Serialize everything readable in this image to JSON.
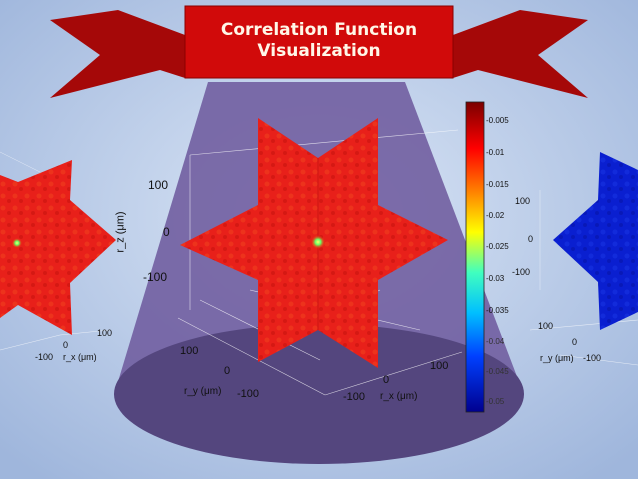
{
  "slide": {
    "title_line1": "Correlation Function",
    "title_line2": "Visualization",
    "background_color": "#b9cbe6",
    "banner_color": "#d10a0a"
  },
  "colorbar": {
    "ticks": [
      "-0.005",
      "-0.01",
      "-0.015",
      "-0.02",
      "-0.025",
      "-0.03",
      "-0.035",
      "-0.04",
      "-0.045",
      "-0.05"
    ]
  },
  "center_plot": {
    "z_ticks": [
      "100",
      "0",
      "-100"
    ],
    "z_label": "r_z (μm)",
    "y_ticks": [
      "100",
      "0",
      "-100"
    ],
    "y_label": "r_y (μm)",
    "x_ticks": [
      "100",
      "0",
      "-100"
    ],
    "x_label": "r_x (μm)"
  },
  "left_plot": {
    "x_ticks": [
      "100",
      "0",
      "-100"
    ],
    "x_label": "r_x (μm)"
  },
  "right_plot": {
    "z_ticks": [
      "100",
      "0",
      "-100"
    ],
    "y_ticks": [
      "100",
      "0",
      "-100"
    ],
    "y_label": "r_y (μm)"
  }
}
